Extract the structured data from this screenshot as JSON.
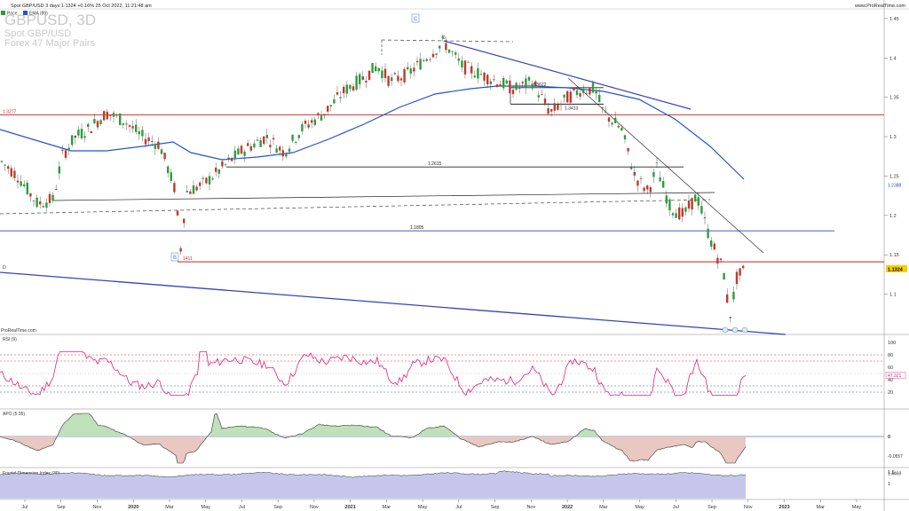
{
  "header": {
    "top_text": "Spot GBP/USD 3 days 1.1324 +0.16% 25 Oct 2022, 11:21:48 am",
    "site": "www.ProRealTime.com",
    "symbol_title": "GBPUSD, 3D",
    "subtitle1": "Spot GBP/USD",
    "subtitle2": "Forex 47 Major Pairs",
    "legend_price": "Price",
    "legend_ema": "EMA (89)",
    "watermark": "ProRealTime.com"
  },
  "colors": {
    "up": "#2a9d3a",
    "down": "#c0392b",
    "ema": "#2255cc",
    "red_line": "#d21f1f",
    "blue_line": "#3344bb",
    "rsi": "#e0227a",
    "apo_pos": "#bfe0b8",
    "apo_neg": "#e8c8c0",
    "fdi": "#b8b8e8"
  },
  "chart_data": {
    "type": "candlestick",
    "price_axis": {
      "min": 1.05,
      "max": 1.46,
      "ticks": [
        "1.45",
        "1.4",
        "1.35",
        "1.3",
        "1.25",
        "1.2",
        "1.15",
        "1.1"
      ]
    },
    "time_labels": [
      "Jul",
      "Sep",
      "Nov",
      "2020",
      "Mar",
      "May",
      "Jul",
      "Sep",
      "Nov",
      "2021",
      "Mar",
      "May",
      "Jul",
      "Sep",
      "Nov",
      "2022",
      "Mar",
      "May",
      "Jul",
      "Sep",
      "Nov",
      "2023",
      "Mar",
      "May"
    ],
    "price_anchors": [
      [
        0,
        1.27
      ],
      [
        20,
        1.25
      ],
      [
        42,
        1.215
      ],
      [
        60,
        1.22
      ],
      [
        70,
        1.275
      ],
      [
        85,
        1.3
      ],
      [
        100,
        1.31
      ],
      [
        120,
        1.33
      ],
      [
        140,
        1.32
      ],
      [
        160,
        1.3
      ],
      [
        180,
        1.29
      ],
      [
        198,
        1.23
      ],
      [
        203,
        1.152
      ],
      [
        210,
        1.23
      ],
      [
        230,
        1.24
      ],
      [
        250,
        1.26
      ],
      [
        270,
        1.28
      ],
      [
        300,
        1.3
      ],
      [
        320,
        1.28
      ],
      [
        340,
        1.31
      ],
      [
        365,
        1.33
      ],
      [
        390,
        1.36
      ],
      [
        410,
        1.375
      ],
      [
        425,
        1.39
      ],
      [
        440,
        1.37
      ],
      [
        460,
        1.38
      ],
      [
        480,
        1.4
      ],
      [
        500,
        1.42
      ],
      [
        520,
        1.39
      ],
      [
        540,
        1.38
      ],
      [
        560,
        1.37
      ],
      [
        580,
        1.36
      ],
      [
        600,
        1.37
      ],
      [
        620,
        1.33
      ],
      [
        640,
        1.35
      ],
      [
        655,
        1.36
      ],
      [
        670,
        1.36
      ],
      [
        680,
        1.33
      ],
      [
        700,
        1.31
      ],
      [
        715,
        1.25
      ],
      [
        730,
        1.23
      ],
      [
        740,
        1.26
      ],
      [
        755,
        1.21
      ],
      [
        770,
        1.2
      ],
      [
        785,
        1.225
      ],
      [
        800,
        1.17
      ],
      [
        815,
        1.13
      ],
      [
        822,
        1.07
      ],
      [
        830,
        1.12
      ],
      [
        840,
        1.132
      ]
    ],
    "current_price": "1.1324",
    "ema_label": "1.2388",
    "levels": [
      {
        "label": "1.3277",
        "value": 1.3277,
        "color": "#d21f1f"
      },
      {
        "label": "1.2615",
        "value": 1.2615,
        "color": "#222222"
      },
      {
        "label": "1.1805",
        "value": 1.1805,
        "color": "#3344bb"
      },
      {
        "label": "1411",
        "value": 1.1411,
        "color": "#d21f1f"
      },
      {
        "label": "1.3622",
        "value": 1.3622,
        "color": "#222222"
      },
      {
        "label": "1.3413",
        "value": 1.3413,
        "color": "#222222"
      }
    ],
    "markers": [
      "C",
      "B",
      "D"
    ],
    "pane_labels": [
      "RSI (9)",
      "APO (5 35)",
      "Fractal Dimension Index (30)"
    ],
    "rsi": {
      "ticks": [
        "100",
        "80",
        "60",
        "40",
        "20"
      ],
      "last": "47.321"
    },
    "apo": {
      "ticks": [
        "0"
      ],
      "last": "-0.0557"
    },
    "fdi": {
      "ticks": [
        "1.5",
        "1"
      ],
      "last": "1.4469"
    }
  }
}
